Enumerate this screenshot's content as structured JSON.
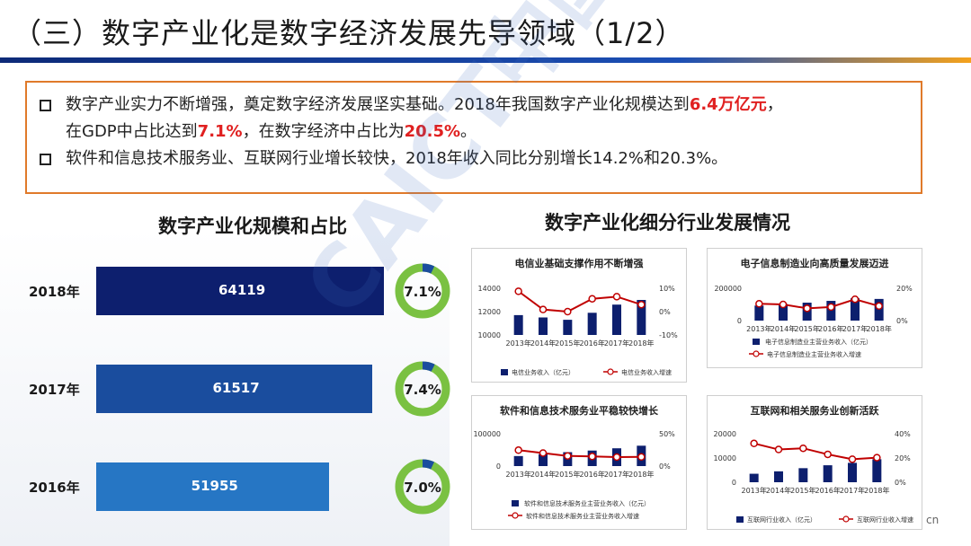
{
  "title": "（三）数字产业化是数字经济发展先导领域（1/2）",
  "summary": {
    "b1_part1": "数字产业实力不断增强，奠定数字经济发展坚实基础。2018年我国数字产业化规模达到",
    "b1_hl1": "6.4万亿元",
    "b1_part2": "，",
    "b1_part3": "在GDP中占比达到",
    "b1_hl2": "7.1%",
    "b1_part4": "，在数字经济中占比为",
    "b1_hl3": "20.5%",
    "b1_part5": "。",
    "b2": "软件和信息技术服务业、互联网行业增长较快，2018年收入同比分别增长14.2%和20.3%。"
  },
  "left_title": "数字产业化规模和占比",
  "right_title": "数字产业化细分行业发展情况",
  "watermark": "CAICT中国信通院",
  "edge_text": "cn",
  "colors": {
    "accent": "#e07a2a",
    "navy": "#0d1f6e",
    "blue": "#1a4d9e",
    "lightblue": "#2676c4",
    "donut": "#7ac142",
    "red": "#c00000"
  },
  "chart_data": [
    {
      "type": "bar",
      "title": "数字产业化规模和占比",
      "categories": [
        "2018年",
        "2017年",
        "2016年"
      ],
      "values": [
        64119,
        61517,
        51955
      ],
      "share_labels": [
        "7.1%",
        "7.4%",
        "7.0%"
      ],
      "shares": [
        7.1,
        7.4,
        7.0
      ]
    },
    {
      "type": "bar",
      "title": "电信业基础支撑作用不断增强",
      "categories": [
        "2013年",
        "2014年",
        "2015年",
        "2016年",
        "2017年",
        "2018年"
      ],
      "series": [
        {
          "name": "电信业务收入（亿元）",
          "type": "bar",
          "values": [
            11700,
            11500,
            11300,
            11900,
            12600,
            13000
          ]
        },
        {
          "name": "电信业务收入增速",
          "type": "line",
          "values": [
            8.7,
            0.9,
            0.0,
            5.5,
            6.4,
            3.0
          ]
        }
      ],
      "ylim": [
        10000,
        14000
      ],
      "yticks": [
        "10000",
        "12000",
        "14000"
      ],
      "ylim2": [
        -10,
        10
      ],
      "yticks2": [
        "-10%",
        "0%",
        "10%"
      ]
    },
    {
      "type": "bar",
      "title": "电子信息制造业向高质量发展迈进",
      "categories": [
        "2013年",
        "2014年",
        "2015年",
        "2016年",
        "2017年",
        "2018年"
      ],
      "series": [
        {
          "name": "电子信息制造业主营业务收入（亿元）",
          "type": "bar",
          "values": [
            93000,
            103000,
            111000,
            122000,
            138000,
            134000
          ]
        },
        {
          "name": "电子信息制造业主营业务收入增速",
          "type": "line",
          "values": [
            10.4,
            10.0,
            7.6,
            8.4,
            13.2,
            9.0
          ]
        }
      ],
      "ylim": [
        0,
        200000
      ],
      "yticks": [
        "0",
        "200000"
      ],
      "ylim2": [
        0,
        20
      ],
      "yticks2": [
        "0%",
        "20%"
      ]
    },
    {
      "type": "bar",
      "title": "软件和信息技术服务业平稳较快增长",
      "categories": [
        "2013年",
        "2014年",
        "2015年",
        "2016年",
        "2017年",
        "2018年"
      ],
      "series": [
        {
          "name": "软件和信息技术服务业主营业务收入（亿元）",
          "type": "bar",
          "values": [
            31000,
            37000,
            43000,
            48000,
            55000,
            63000
          ]
        },
        {
          "name": "软件和信息技术服务业主营业务收入增速",
          "type": "line",
          "values": [
            24.6,
            20.2,
            15.7,
            14.9,
            13.9,
            14.2
          ]
        }
      ],
      "ylim": [
        0,
        100000
      ],
      "yticks": [
        "0",
        "100000"
      ],
      "ylim2": [
        0,
        50
      ],
      "yticks2": [
        "0%",
        "50%"
      ]
    },
    {
      "type": "bar",
      "title": "互联网和相关服务业创新活跃",
      "categories": [
        "2013年",
        "2014年",
        "2015年",
        "2016年",
        "2017年",
        "2018年"
      ],
      "series": [
        {
          "name": "互联网行业收入（亿元）",
          "type": "bar",
          "values": [
            3500,
            4500,
            5800,
            7000,
            8000,
            9500
          ]
        },
        {
          "name": "互联网行业收入增速",
          "type": "line",
          "values": [
            32,
            27,
            28,
            23,
            19,
            20.3
          ]
        }
      ],
      "ylim": [
        0,
        20000
      ],
      "yticks": [
        "0",
        "10000",
        "20000"
      ],
      "ylim2": [
        0,
        40
      ],
      "yticks2": [
        "0%",
        "20%",
        "40%"
      ]
    }
  ]
}
